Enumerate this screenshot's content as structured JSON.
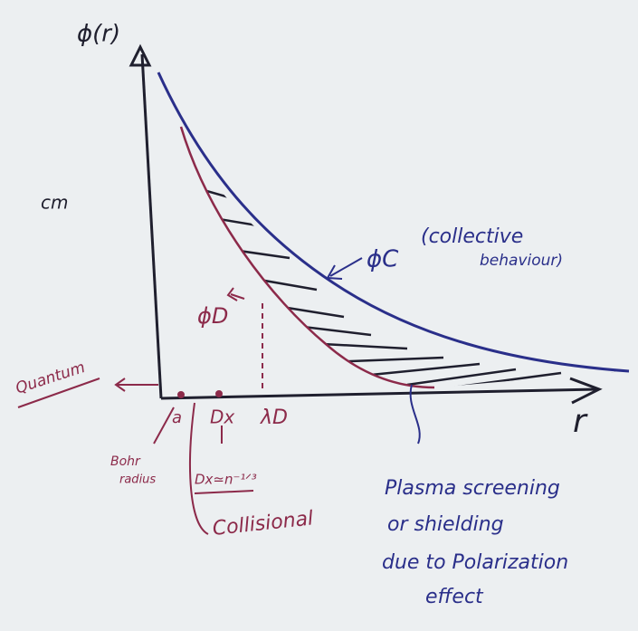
{
  "axes": {
    "y_label": "ϕ(r)",
    "x_label": "r"
  },
  "curves": {
    "collective": {
      "label": "ϕC",
      "note_line1": "(collective",
      "note_line2": "behaviour)"
    },
    "debye": {
      "label": "ϕD"
    }
  },
  "points": {
    "a": "a",
    "dx": "Dx",
    "lambda_d": "λD"
  },
  "notes": {
    "bohr_line1": "Bohr",
    "bohr_line2": "radius",
    "dx_relation": "Dx≃n⁻¹ᐟ³",
    "quantum": "Quantum",
    "collisional": "Collisional",
    "screening_line1": "Plasma screening",
    "screening_line2": "or shielding",
    "screening_line3": "due to Polarization",
    "screening_line4": "effect",
    "margin": "cm"
  }
}
